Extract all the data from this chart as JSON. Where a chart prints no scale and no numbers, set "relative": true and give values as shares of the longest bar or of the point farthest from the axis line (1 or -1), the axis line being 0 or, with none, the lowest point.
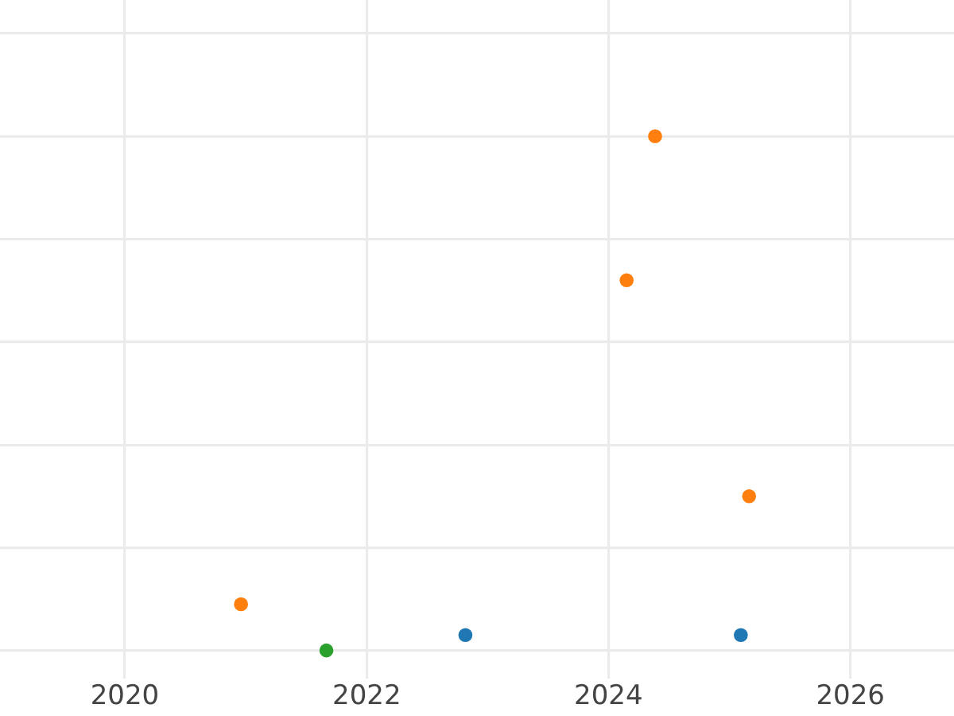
{
  "chart_data": {
    "type": "scatter",
    "series": [
      {
        "color": "#1f77b4",
        "x": [
          "2022-10-26",
          "2025-02-04"
        ],
        "values": [
          0.03,
          0.03
        ]
      },
      {
        "color": "#ff7f0e",
        "x": [
          "2020-12-17",
          "2024-02-25",
          "2024-05-21",
          "2025-03-01"
        ],
        "values": [
          0.09,
          0.72,
          1,
          0.3
        ]
      },
      {
        "color": "#2ca02c",
        "x": [
          "2021-09-01"
        ],
        "values": [
          0
        ]
      }
    ],
    "relative": true,
    "xlim": [
      "2018-12-20",
      "2026-11-10"
    ],
    "xticks": [
      "2020",
      "2022",
      "2024",
      "2026"
    ],
    "grid": true,
    "marker": "circle"
  }
}
